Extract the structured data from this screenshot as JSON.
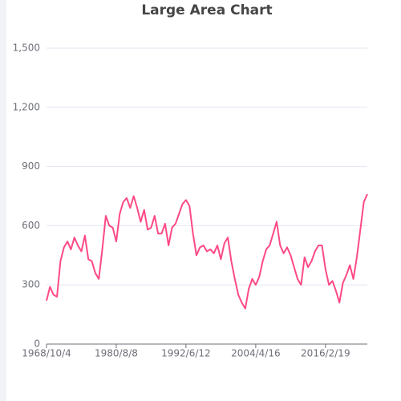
{
  "chart_data": {
    "type": "line",
    "title": "Large Area Chart",
    "categories": [
      "1968/10/4",
      null,
      null,
      null,
      null,
      null,
      null,
      null,
      null,
      null,
      null,
      null,
      null,
      null,
      null,
      null,
      null,
      null,
      null,
      null,
      "1980/8/8",
      null,
      null,
      null,
      null,
      null,
      null,
      null,
      null,
      null,
      null,
      null,
      null,
      null,
      null,
      null,
      null,
      null,
      null,
      null,
      "1992/6/12",
      null,
      null,
      null,
      null,
      null,
      null,
      null,
      null,
      null,
      null,
      null,
      null,
      null,
      null,
      null,
      null,
      null,
      null,
      null,
      "2004/4/16",
      null,
      null,
      null,
      null,
      null,
      null,
      null,
      null,
      null,
      null,
      null,
      null,
      null,
      null,
      null,
      null,
      null,
      null,
      null,
      "2016/2/19",
      null,
      null,
      null,
      null,
      null,
      null,
      null,
      null,
      null,
      null,
      null,
      null
    ],
    "values": [
      220,
      290,
      250,
      240,
      420,
      490,
      520,
      480,
      540,
      500,
      470,
      550,
      430,
      420,
      360,
      330,
      480,
      650,
      600,
      590,
      520,
      660,
      720,
      740,
      690,
      750,
      690,
      620,
      680,
      580,
      590,
      650,
      560,
      560,
      610,
      500,
      590,
      610,
      660,
      710,
      730,
      700,
      560,
      450,
      490,
      500,
      470,
      480,
      460,
      500,
      430,
      510,
      540,
      420,
      330,
      250,
      210,
      180,
      280,
      330,
      300,
      340,
      420,
      480,
      500,
      560,
      620,
      500,
      460,
      490,
      450,
      390,
      330,
      300,
      440,
      390,
      420,
      470,
      500,
      500,
      380,
      300,
      320,
      270,
      210,
      310,
      350,
      400,
      330,
      440,
      580,
      720,
      760
    ],
    "color": "#fd4a84",
    "ylim": [
      0,
      1500
    ],
    "yticks": [
      0,
      {
        "value": 300,
        "label": "300"
      },
      600,
      900,
      {
        "value": 1200,
        "label": "1,200"
      },
      {
        "value": 1500,
        "label": "1,500"
      }
    ],
    "grid": true
  }
}
